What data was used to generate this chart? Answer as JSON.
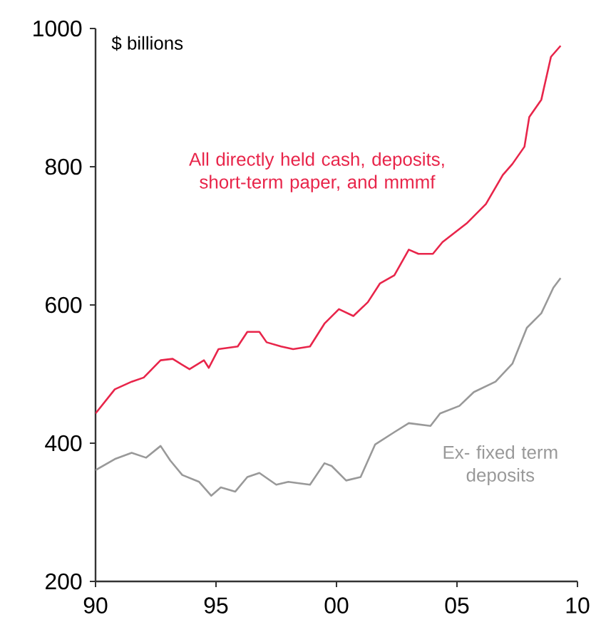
{
  "chart_data": {
    "type": "line",
    "ylabel": "$ billions",
    "xlim": [
      1990,
      2010
    ],
    "ylim": [
      200,
      1000
    ],
    "xticks": [
      {
        "value": 1990,
        "label": "90"
      },
      {
        "value": 1995,
        "label": "95"
      },
      {
        "value": 2000,
        "label": "00"
      },
      {
        "value": 2005,
        "label": "05"
      },
      {
        "value": 2010,
        "label": "10"
      }
    ],
    "yticks": [
      200,
      400,
      600,
      800,
      1000
    ],
    "series": [
      {
        "name": "All directly held cash, deposits, short-term paper, and mmmf",
        "color": "#e8254a",
        "x": [
          1990,
          1990.8,
          1991.5,
          1992,
          1992.7,
          1993.2,
          1993.9,
          1994.5,
          1994.7,
          1995.1,
          1995.9,
          1996.3,
          1996.8,
          1997.1,
          1997.7,
          1998.2,
          1998.9,
          1999.5,
          2000.1,
          2000.7,
          2001.3,
          2001.8,
          2002.4,
          2003,
          2003.4,
          2004,
          2004.4,
          2005.4,
          2006.2,
          2006.9,
          2007.3,
          2007.8,
          2008,
          2008.5,
          2008.9,
          2009.3
        ],
        "values": [
          443,
          478,
          489,
          495,
          520,
          522,
          507,
          520,
          509,
          536,
          540,
          561,
          561,
          546,
          540,
          536,
          540,
          573,
          594,
          584,
          604,
          631,
          643,
          680,
          674,
          674,
          691,
          718,
          746,
          788,
          804,
          829,
          872,
          897,
          959,
          975
        ]
      },
      {
        "name": "Ex- fixed term deposits",
        "color": "#999999",
        "x": [
          1990,
          1990.8,
          1991.5,
          1992.1,
          1992.7,
          1993.1,
          1993.6,
          1994.3,
          1994.8,
          1995.2,
          1995.8,
          1996.3,
          1996.8,
          1997.5,
          1998,
          1998.9,
          1999.5,
          1999.8,
          2000.4,
          2001,
          2001.6,
          2002.4,
          2003,
          2003.9,
          2004.3,
          2005.1,
          2005.7,
          2006.6,
          2007.3,
          2007.9,
          2008.5,
          2009,
          2009.3
        ],
        "values": [
          361,
          377,
          386,
          379,
          396,
          375,
          354,
          344,
          324,
          336,
          330,
          351,
          357,
          340,
          344,
          340,
          371,
          367,
          346,
          351,
          398,
          416,
          429,
          425,
          443,
          454,
          474,
          489,
          515,
          567,
          588,
          625,
          639
        ]
      }
    ]
  }
}
